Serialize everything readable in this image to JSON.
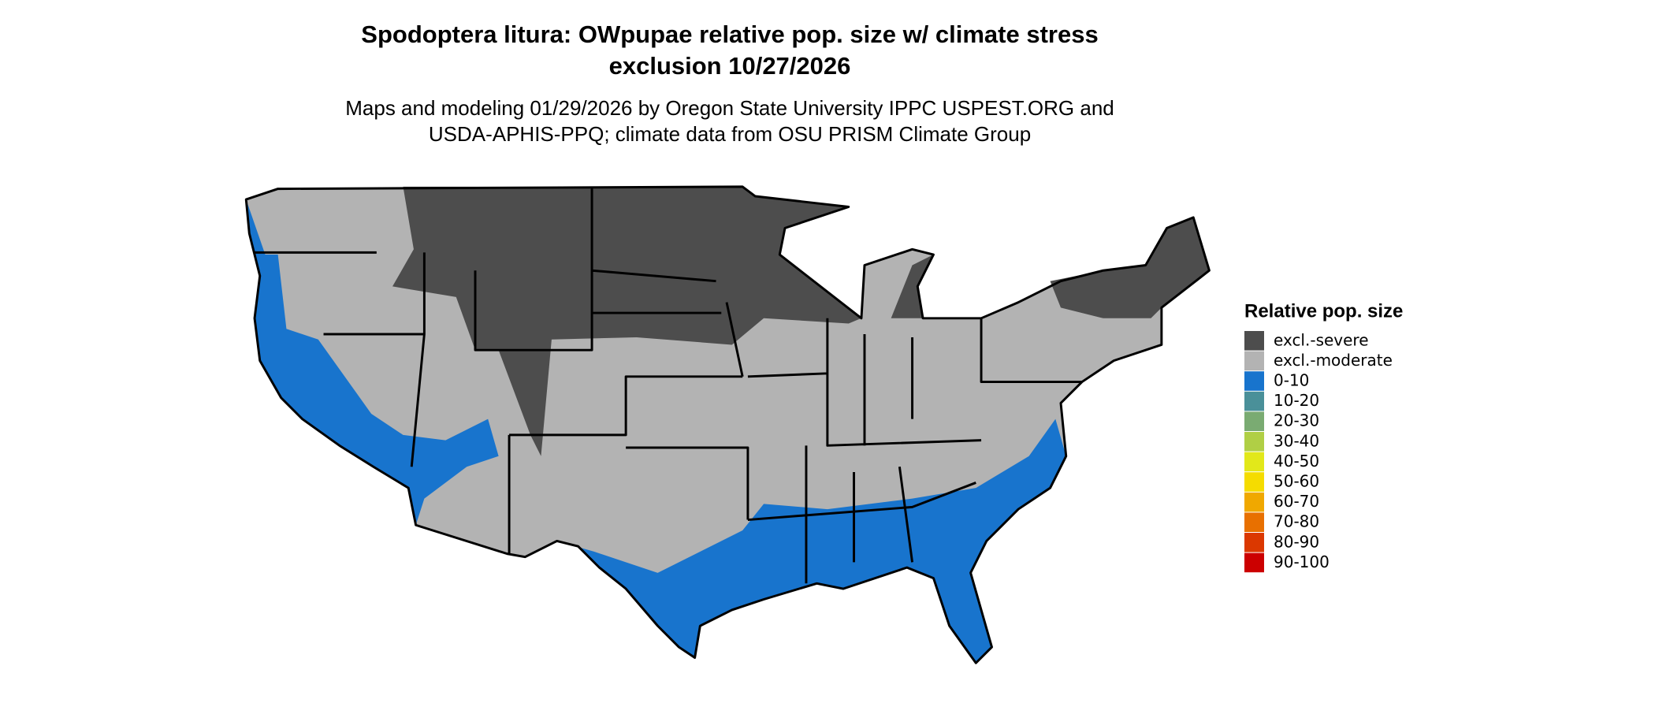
{
  "title": "Spodoptera litura: OWpupae relative pop. size w/ climate stress",
  "title_line2": "exclusion 10/27/2026",
  "subtitle": "Maps and modeling 01/29/2026 by Oregon State University IPPC USPEST.ORG and",
  "subtitle_line2": "USDA-APHIS-PPQ; climate data from OSU PRISM Climate Group",
  "legend": {
    "title": "Relative pop. size",
    "items": [
      {
        "label": "excl.-severe",
        "color": "#4d4d4d"
      },
      {
        "label": "excl.-moderate",
        "color": "#b3b3b3"
      },
      {
        "label": "0-10",
        "color": "#1874cd"
      },
      {
        "label": "10-20",
        "color": "#4a9099"
      },
      {
        "label": "20-30",
        "color": "#7aab72"
      },
      {
        "label": "30-40",
        "color": "#b0cf45"
      },
      {
        "label": "40-50",
        "color": "#e2e81a"
      },
      {
        "label": "50-60",
        "color": "#f5dc00"
      },
      {
        "label": "60-70",
        "color": "#f0a800"
      },
      {
        "label": "70-80",
        "color": "#e87000"
      },
      {
        "label": "80-90",
        "color": "#db3800"
      },
      {
        "label": "90-100",
        "color": "#cc0000"
      }
    ]
  }
}
